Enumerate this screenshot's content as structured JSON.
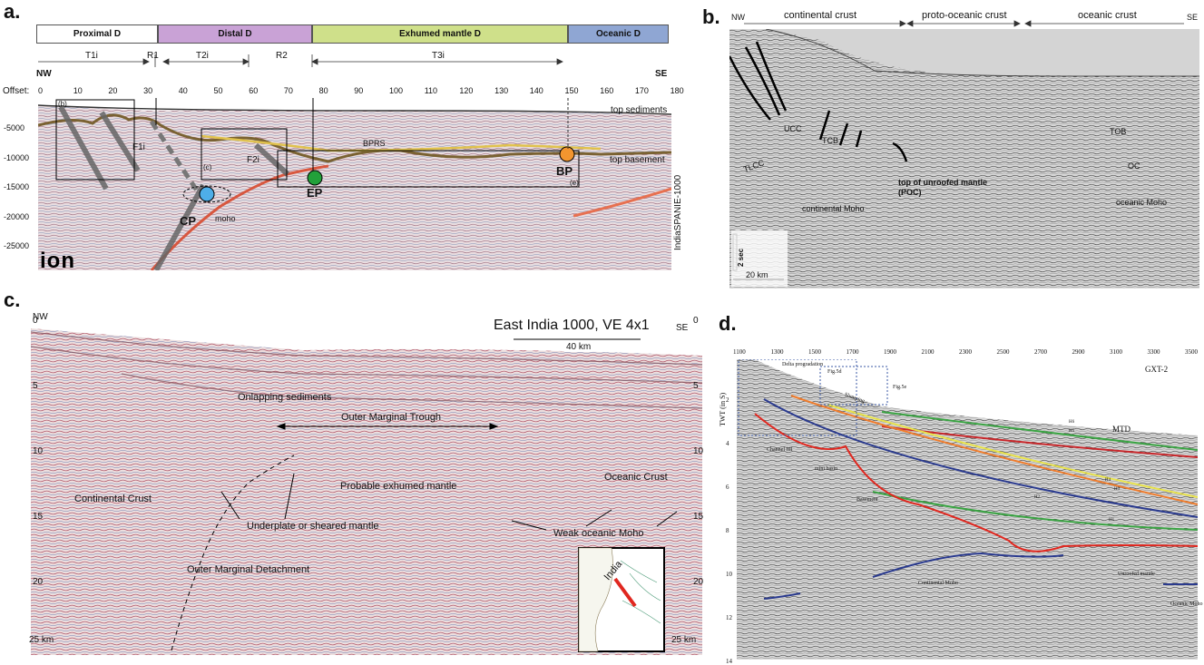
{
  "panels": {
    "a": {
      "letter": "a.",
      "domains": [
        {
          "label": "Proximal D",
          "color": "#ffffff"
        },
        {
          "label": "Distal D",
          "color": "#c9a2d6"
        },
        {
          "label": "Exhumed mantle D",
          "color": "#cfe08a"
        },
        {
          "label": "Oceanic D",
          "color": "#8fa6d3"
        }
      ],
      "intervals": [
        "T1i",
        "R1",
        "T2i",
        "R2",
        "T3i"
      ],
      "nw": "NW",
      "se": "SE",
      "offset_label": "Offset:",
      "offset_ticks": [
        "0",
        "10",
        "20",
        "30",
        "40",
        "50",
        "60",
        "70",
        "80",
        "90",
        "100",
        "110",
        "120",
        "130",
        "140",
        "150",
        "160",
        "170",
        "180"
      ],
      "depth_ticks": [
        "-5000",
        "-10000",
        "-15000",
        "-20000",
        "-25000"
      ],
      "labels": {
        "top_sediments": "top sediments",
        "top_basement": "top basement",
        "bprs": "BPRS",
        "f1i": "F1i",
        "f2i": "F2i",
        "moho": "moho",
        "cp": "CP",
        "ep": "EP",
        "bp": "BP",
        "box_b": "(b)",
        "box_c": "(c)",
        "box_e": "(e)",
        "line_name": "IndiaSPANIE-1000",
        "logo": "ion"
      }
    },
    "b": {
      "letter": "b.",
      "nw": "NW",
      "se": "SE",
      "headers": [
        "continental crust",
        "proto-oceanic crust",
        "oceanic crust"
      ],
      "labels": {
        "tcb": "TCB",
        "ucc": "UCC",
        "tlcc": "TLCC",
        "continental_moho": "continental Moho",
        "top_unroofed": "top of unroofed mantle",
        "poc": "(POC)",
        "tob": "TOB",
        "oc": "OC",
        "oceanic_moho": "oceanic Moho",
        "scale_time": "2 sec",
        "scale_dist": "20 km"
      }
    },
    "c": {
      "letter": "c.",
      "title": "East India 1000, VE 4x1",
      "nw": "NW",
      "se": "SE",
      "scale": "40 km",
      "depth_left": [
        "0",
        "5",
        "10",
        "15",
        "20",
        "25 km"
      ],
      "depth_right": [
        "0",
        "5",
        "10",
        "15",
        "20",
        "25 km"
      ],
      "labels": {
        "onlapping": "Onlapping sediments",
        "omt": "Outer Marginal Trough",
        "probable": "Probable exhumed mantle",
        "oceanic_crust": "Oceanic Crust",
        "continental_crust": "Continental Crust",
        "underplate": "Underplate or sheared mantle",
        "weak_moho": "Weak oceanic Moho",
        "omd": "Outer Marginal Detachment",
        "india": "India"
      }
    },
    "d": {
      "letter": "d.",
      "x_ticks": [
        "1100",
        "1300",
        "1500",
        "1700",
        "1900",
        "2100",
        "2300",
        "2500",
        "2700",
        "2900",
        "3100",
        "3300",
        "3500"
      ],
      "y_ticks": [
        "2",
        "4",
        "6",
        "8",
        "10",
        "12",
        "14"
      ],
      "y_axis": "TWT (in S)",
      "line_name": "GXT-2",
      "labels": {
        "delta": "Delta progradation",
        "fig5d": "Fig.5d",
        "fig5e": "Fig.5e",
        "slumping": "Slumping",
        "channel_fill": "Channel fill",
        "mini_basin": "mini basin",
        "basement": "Basement",
        "mtd": "MTD",
        "continental_moho": "Continental Moho",
        "unroofed": "Unroofed mantle",
        "oceanic_moho": "Oceanic Moho",
        "h6": "H6",
        "h5": "H5",
        "h4": "H4",
        "h3": "H3",
        "h2": "H2",
        "h1": "H1"
      }
    }
  }
}
